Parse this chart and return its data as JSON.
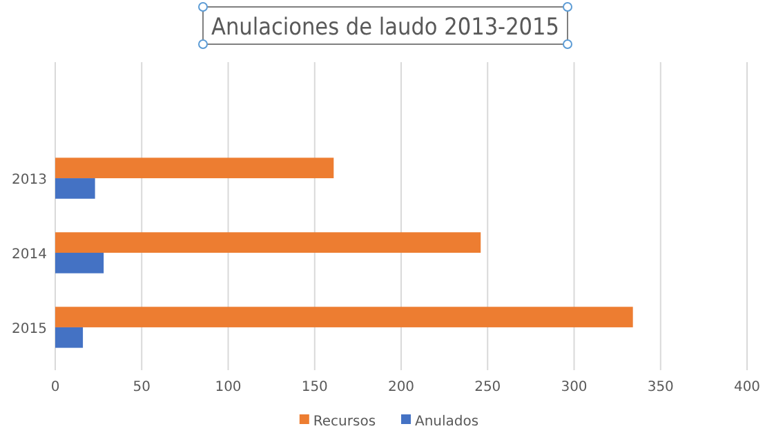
{
  "chart_data": {
    "type": "bar",
    "orientation": "horizontal",
    "title": "Anulaciones de laudo 2013-2015",
    "categories": [
      "2013",
      "2014",
      "2015"
    ],
    "series": [
      {
        "name": "Recursos",
        "color": "#ed7d31",
        "values": [
          161,
          246,
          334
        ]
      },
      {
        "name": "Anulados",
        "color": "#4472c4",
        "values": [
          23,
          28,
          16
        ]
      }
    ],
    "xlim": [
      0,
      400
    ],
    "xticks": [
      0,
      50,
      100,
      150,
      200,
      250,
      300,
      350,
      400
    ],
    "grid": "x",
    "legend": "bottom"
  }
}
